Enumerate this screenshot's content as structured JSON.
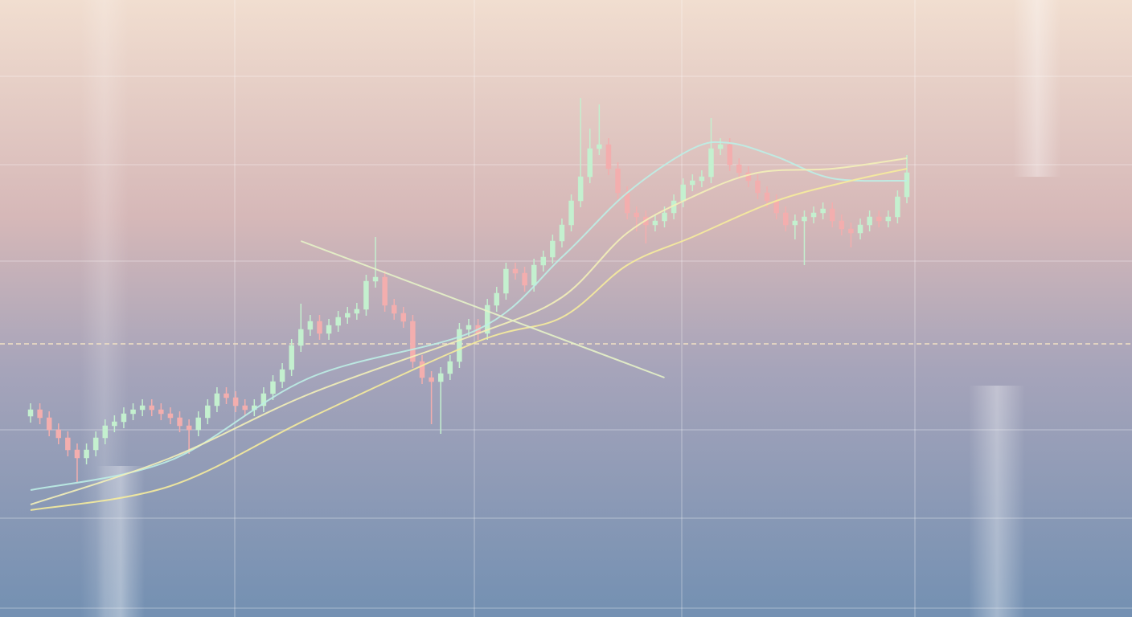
{
  "chart_data": {
    "type": "candlestick",
    "xlim": [
      0,
      94
    ],
    "ylim": [
      0,
      768
    ],
    "up_color": "#c4f0cf",
    "down_color": "#f3aeae",
    "open": [
      250,
      258,
      248,
      233,
      223,
      208,
      198,
      208,
      223,
      238,
      243,
      253,
      258,
      263,
      258,
      253,
      248,
      238,
      233,
      248,
      263,
      278,
      273,
      263,
      258,
      263,
      278,
      293,
      308,
      338,
      358,
      368,
      353,
      363,
      373,
      378,
      383,
      418,
      423,
      388,
      378,
      368,
      318,
      298,
      293,
      303,
      318,
      358,
      363,
      353,
      388,
      403,
      433,
      428,
      413,
      438,
      448,
      468,
      488,
      518,
      548,
      583,
      588,
      558,
      528,
      503,
      498,
      488,
      493,
      503,
      518,
      538,
      543,
      548,
      583,
      588,
      563,
      553,
      543,
      528,
      518,
      503,
      488,
      493,
      498,
      503,
      508,
      493,
      483,
      478,
      488,
      498,
      493,
      498,
      523
    ],
    "high": [
      266,
      266,
      256,
      241,
      231,
      216,
      216,
      231,
      246,
      251,
      261,
      266,
      271,
      271,
      266,
      261,
      256,
      246,
      256,
      271,
      286,
      286,
      281,
      271,
      271,
      286,
      301,
      316,
      346,
      390,
      376,
      376,
      371,
      381,
      386,
      391,
      426,
      473,
      431,
      396,
      386,
      376,
      326,
      306,
      311,
      326,
      366,
      371,
      371,
      396,
      411,
      441,
      441,
      436,
      446,
      456,
      476,
      496,
      526,
      646,
      608,
      638,
      596,
      566,
      536,
      511,
      506,
      501,
      511,
      526,
      546,
      551,
      556,
      621,
      596,
      596,
      571,
      561,
      551,
      536,
      526,
      511,
      501,
      506,
      511,
      516,
      516,
      501,
      491,
      496,
      506,
      506,
      506,
      531,
      575
    ],
    "low": [
      242,
      240,
      225,
      215,
      200,
      168,
      190,
      200,
      215,
      230,
      235,
      245,
      250,
      250,
      245,
      240,
      230,
      203,
      225,
      240,
      255,
      265,
      255,
      250,
      250,
      255,
      270,
      285,
      300,
      330,
      350,
      345,
      345,
      355,
      365,
      370,
      375,
      410,
      380,
      370,
      360,
      310,
      290,
      240,
      228,
      295,
      310,
      350,
      345,
      345,
      380,
      395,
      420,
      405,
      405,
      430,
      440,
      460,
      480,
      510,
      540,
      575,
      550,
      520,
      495,
      480,
      465,
      480,
      485,
      495,
      510,
      530,
      535,
      540,
      575,
      555,
      545,
      535,
      520,
      510,
      495,
      480,
      470,
      438,
      490,
      495,
      485,
      475,
      460,
      470,
      480,
      485,
      485,
      490,
      515
    ],
    "close": [
      258,
      248,
      233,
      223,
      208,
      198,
      208,
      223,
      238,
      243,
      253,
      258,
      263,
      258,
      253,
      248,
      238,
      233,
      248,
      263,
      278,
      273,
      263,
      258,
      263,
      278,
      293,
      308,
      338,
      358,
      368,
      353,
      363,
      373,
      378,
      383,
      418,
      423,
      388,
      378,
      368,
      318,
      298,
      293,
      303,
      318,
      358,
      363,
      353,
      388,
      403,
      433,
      428,
      413,
      438,
      448,
      468,
      488,
      518,
      548,
      583,
      588,
      558,
      528,
      503,
      498,
      488,
      493,
      503,
      518,
      538,
      543,
      548,
      583,
      588,
      563,
      553,
      543,
      528,
      518,
      503,
      488,
      493,
      498,
      503,
      508,
      493,
      483,
      478,
      488,
      498,
      493,
      498,
      523,
      553
    ],
    "series": [
      {
        "color": "#bdeee6",
        "x": [
          0,
          15,
          30,
          48,
          57,
          64,
          71,
          75,
          80,
          86,
          94
        ],
        "values": [
          158,
          195,
          298,
          358,
          448,
          528,
          583,
          590,
          573,
          546,
          543
        ]
      },
      {
        "color": "#f3f0b8",
        "x": [
          0,
          15,
          30,
          48,
          57,
          64,
          71,
          78,
          86,
          94
        ],
        "values": [
          140,
          198,
          278,
          353,
          398,
          478,
          523,
          553,
          558,
          571
        ]
      },
      {
        "color": "#f6ec9c",
        "x": [
          0,
          15,
          30,
          48,
          57,
          64,
          71,
          80,
          88,
          94
        ],
        "values": [
          133,
          163,
          248,
          343,
          373,
          438,
          473,
          518,
          543,
          558
        ]
      }
    ],
    "trendline": {
      "color": "#e6f2c8",
      "x": [
        29,
        68
      ],
      "values": [
        468,
        298
      ]
    },
    "hline": {
      "color": "#f2e2c4",
      "value": 340
    }
  }
}
